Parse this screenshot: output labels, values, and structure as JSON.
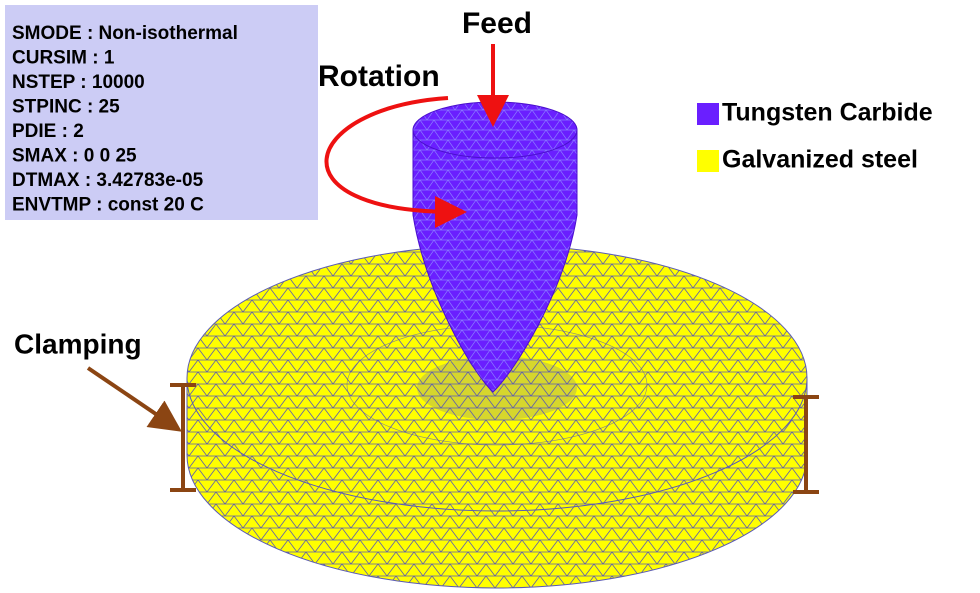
{
  "info_panel": {
    "lines": [
      "SMODE :  Non-isothermal",
      "CURSIM :  1",
      "NSTEP : 10000",
      "STPINC : 25",
      "PDIE : 2",
      "SMAX : 0  0  25",
      "DTMAX : 3.42783e-05",
      "ENVTMP : const 20 C"
    ]
  },
  "annotations": {
    "feed": "Feed",
    "rotation": "Rotation",
    "clamping": "Clamping"
  },
  "legend": [
    {
      "name": "Tungsten Carbide",
      "color": "#6a1fff"
    },
    {
      "name": "Galvanized steel",
      "color": "#ffff00"
    }
  ]
}
